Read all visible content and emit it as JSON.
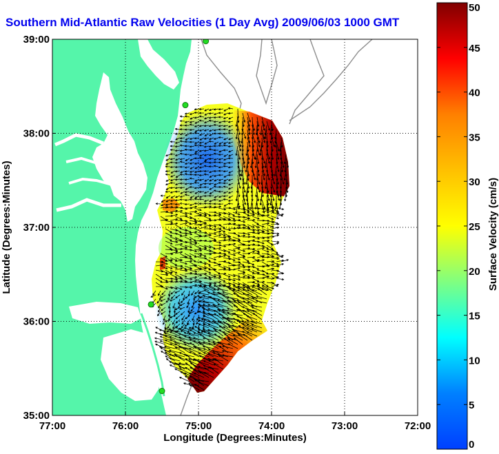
{
  "title": "Southern Mid-Atlantic Raw Velocities (1 Day Avg) 2009/06/03 1000 GMT",
  "title_color": "#0000ee",
  "map": {
    "xlabel": "Longitude (Degrees:Minutes)",
    "ylabel": "Latitude (Degrees:Minutes)",
    "lon_range": [
      -77,
      -72
    ],
    "lat_range": [
      35,
      39
    ],
    "x_ticks": [
      {
        "value": -77,
        "label": "77:00"
      },
      {
        "value": -76,
        "label": "76:00"
      },
      {
        "value": -75,
        "label": "75:00"
      },
      {
        "value": -74,
        "label": "74:00"
      },
      {
        "value": -73,
        "label": "73:00"
      },
      {
        "value": -72,
        "label": "72:00"
      }
    ],
    "y_ticks": [
      {
        "value": 39,
        "label": "39:00"
      },
      {
        "value": 38,
        "label": "38:00"
      },
      {
        "value": 37,
        "label": "37:00"
      },
      {
        "value": 36,
        "label": "36:00"
      },
      {
        "value": 35,
        "label": "35:00"
      }
    ],
    "land_color": "#55f5aa",
    "water_color": "#ffffff",
    "bathymetry_color": "#8c8c8c",
    "grid": true
  },
  "colorbar": {
    "label": "Surface Velocity (cm/s)",
    "range": [
      0,
      50
    ],
    "ticks": [
      {
        "value": 50,
        "label": "50"
      },
      {
        "value": 45,
        "label": "45"
      },
      {
        "value": 40,
        "label": "40"
      },
      {
        "value": 35,
        "label": "35"
      },
      {
        "value": 30,
        "label": "30"
      },
      {
        "value": 25,
        "label": "25"
      },
      {
        "value": 20,
        "label": "20"
      },
      {
        "value": 15,
        "label": "15"
      },
      {
        "value": 10,
        "label": "10"
      },
      {
        "value": 5,
        "label": "5"
      },
      {
        "value": 0,
        "label": "0"
      }
    ],
    "colormap": "jet"
  },
  "stations": [
    {
      "lon": -74.9,
      "lat": 38.98
    },
    {
      "lon": -75.18,
      "lat": 38.3
    },
    {
      "lon": -75.65,
      "lat": 36.18
    },
    {
      "lon": -75.5,
      "lat": 35.26
    }
  ]
}
